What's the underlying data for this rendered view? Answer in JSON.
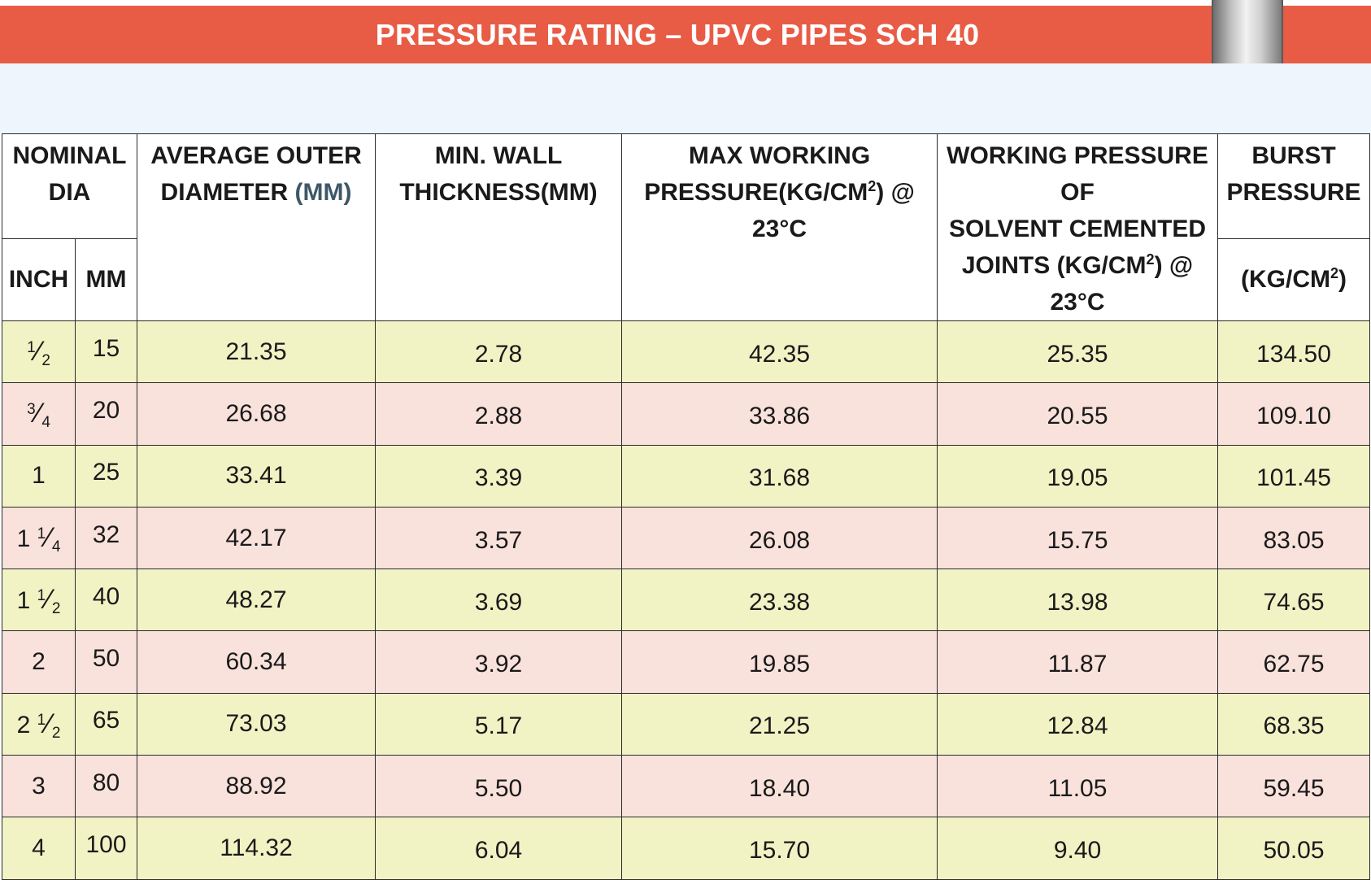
{
  "title": "PRESSURE RATING – UPVC PIPES SCH 40",
  "header": {
    "nominal_line1": "NOMINAL",
    "nominal_line2": "DIA",
    "inch": "INCH",
    "mm": "MM",
    "outer_line1": "AVERAGE OUTER",
    "outer_line2a": "DIAMETER ",
    "outer_line2b": "(MM)",
    "wall_line1": "MIN. WALL",
    "wall_line2": "THICKNESS(MM)",
    "maxwp_line1": "MAX WORKING",
    "maxwp_line2a": "PRESSURE(KG/CM",
    "maxwp_line2b": ") @ 23°C",
    "joint_line1": "WORKING PRESSURE OF",
    "joint_line2": "SOLVENT CEMENTED",
    "joint_line3a": "JOINTS (KG/CM",
    "joint_line3b": ") @",
    "joint_line4": "23°C",
    "burst_line1": "BURST",
    "burst_line2": "PRESSURE",
    "burst_unit_a": "(KG/CM",
    "burst_unit_b": ")",
    "sq": "2"
  },
  "rows": [
    {
      "inch_whole": "",
      "inch_num": "1",
      "inch_den": "2",
      "mm": "15",
      "od": "21.35",
      "wall": "2.78",
      "maxwp": "42.35",
      "joint": "25.35",
      "burst": "134.50"
    },
    {
      "inch_whole": "",
      "inch_num": "3",
      "inch_den": "4",
      "mm": "20",
      "od": "26.68",
      "wall": "2.88",
      "maxwp": "33.86",
      "joint": "20.55",
      "burst": "109.10"
    },
    {
      "inch_whole": "1",
      "inch_num": "",
      "inch_den": "",
      "mm": "25",
      "od": "33.41",
      "wall": "3.39",
      "maxwp": "31.68",
      "joint": "19.05",
      "burst": "101.45"
    },
    {
      "inch_whole": "1",
      "inch_num": "1",
      "inch_den": "4",
      "mm": "32",
      "od": "42.17",
      "wall": "3.57",
      "maxwp": "26.08",
      "joint": "15.75",
      "burst": "83.05"
    },
    {
      "inch_whole": "1",
      "inch_num": "1",
      "inch_den": "2",
      "mm": "40",
      "od": "48.27",
      "wall": "3.69",
      "maxwp": "23.38",
      "joint": "13.98",
      "burst": "74.65"
    },
    {
      "inch_whole": "2",
      "inch_num": "",
      "inch_den": "",
      "mm": "50",
      "od": "60.34",
      "wall": "3.92",
      "maxwp": "19.85",
      "joint": "11.87",
      "burst": "62.75"
    },
    {
      "inch_whole": "2",
      "inch_num": "1",
      "inch_den": "2",
      "mm": "65",
      "od": "73.03",
      "wall": "5.17",
      "maxwp": "21.25",
      "joint": "12.84",
      "burst": "68.35"
    },
    {
      "inch_whole": "3",
      "inch_num": "",
      "inch_den": "",
      "mm": "80",
      "od": "88.92",
      "wall": "5.50",
      "maxwp": "18.40",
      "joint": "11.05",
      "burst": "59.45"
    },
    {
      "inch_whole": "4",
      "inch_num": "",
      "inch_den": "",
      "mm": "100",
      "od": "114.32",
      "wall": "6.04",
      "maxwp": "15.70",
      "joint": "9.40",
      "burst": "50.05"
    }
  ],
  "colors": {
    "banner": "#e85c45",
    "row_green": "#f2f3c5",
    "row_pink": "#f9e2dc",
    "header_band": "#eef5fd"
  }
}
